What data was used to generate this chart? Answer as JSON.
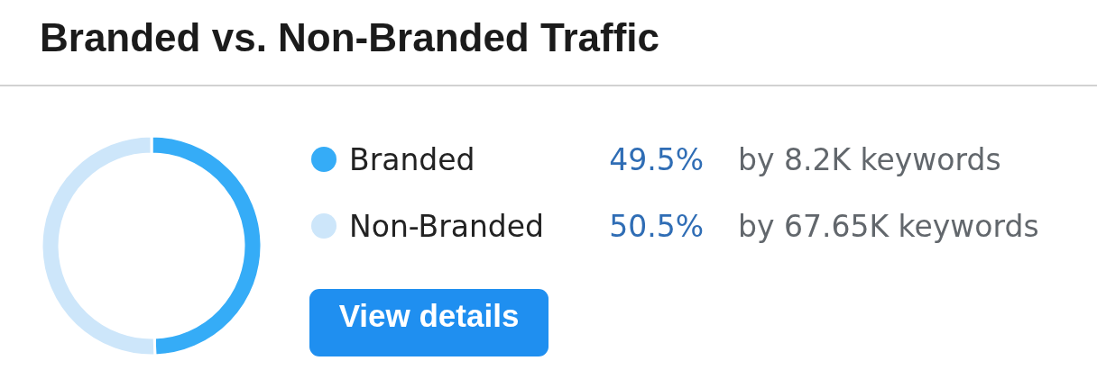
{
  "chart_data": {
    "type": "donut",
    "title": "Branded vs. Non-Branded Traffic",
    "categories": [
      "Branded",
      "Non-Branded"
    ],
    "values": [
      49.5,
      50.5
    ],
    "colors": [
      "#35acf7",
      "#cde6fa"
    ],
    "value_labels": [
      "49.5%",
      "50.5%"
    ],
    "annotations": [
      "by 8.2K keywords",
      "by 67.65K keywords",
      "View details"
    ],
    "legend": "right"
  }
}
